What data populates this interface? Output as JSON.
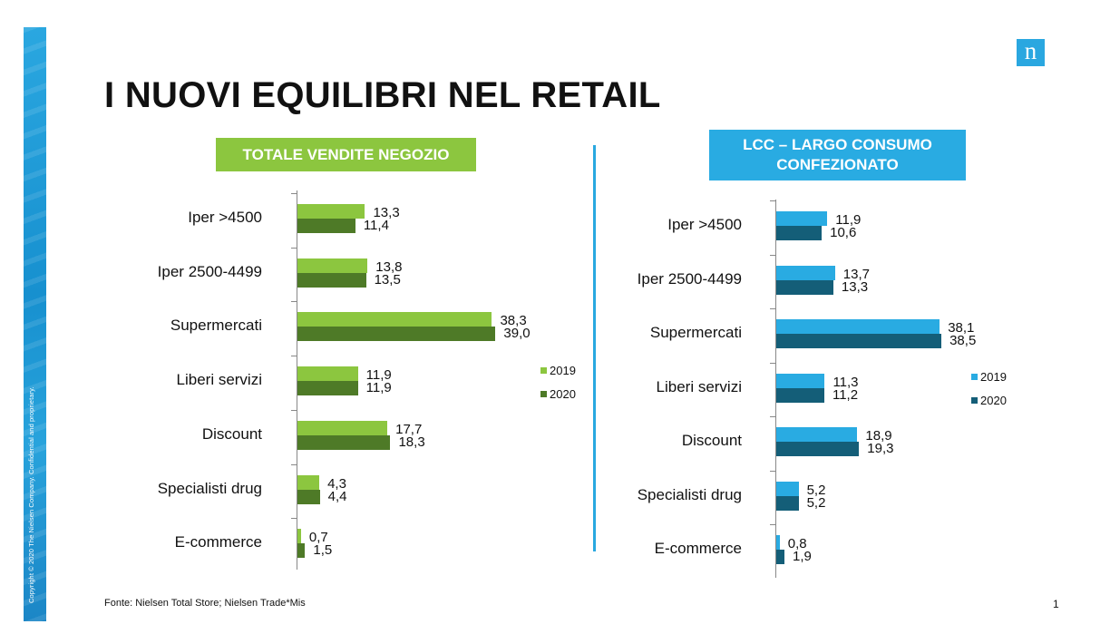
{
  "page": {
    "title": "I NUOVI EQUILIBRI NEL RETAIL",
    "logo_letter": "n",
    "copyright": "Copyright © 2020 The Nielsen Company. Confidential and proprietary.",
    "source": "Fonte: Nielsen Total Store; Nielsen Trade*Mis",
    "page_number": "1"
  },
  "colors": {
    "left_2019": "#8cc63f",
    "left_2020": "#4e7a27",
    "right_2019": "#29abe2",
    "right_2020": "#145e78",
    "accent_blue": "#29a8e0"
  },
  "chart_data": [
    {
      "type": "bar",
      "orientation": "horizontal",
      "title": "TOTALE VENDITE NEGOZIO",
      "title_lines": [
        "TOTALE VENDITE NEGOZIO"
      ],
      "categories": [
        "Iper >4500",
        "Iper 2500-4499",
        "Supermercati",
        "Liberi servizi",
        "Discount",
        "Specialisti drug",
        "E-commerce"
      ],
      "series": [
        {
          "name": "2019",
          "values": [
            13.3,
            13.8,
            38.3,
            11.9,
            17.7,
            4.3,
            0.7
          ],
          "labels": [
            "13,3",
            "13,8",
            "38,3",
            "11,9",
            "17,7",
            "4,3",
            "0,7"
          ]
        },
        {
          "name": "2020",
          "values": [
            11.4,
            13.5,
            39.0,
            11.9,
            18.3,
            4.4,
            1.5
          ],
          "labels": [
            "11,4",
            "13,5",
            "39,0",
            "11,9",
            "18,3",
            "4,4",
            "1,5"
          ]
        }
      ],
      "xlim": [
        0,
        40
      ],
      "legend": "right",
      "grid": false
    },
    {
      "type": "bar",
      "orientation": "horizontal",
      "title": "LCC – LARGO CONSUMO CONFEZIONATO",
      "title_lines": [
        "LCC – LARGO CONSUMO",
        "CONFEZIONATO"
      ],
      "categories": [
        "Iper >4500",
        "Iper 2500-4499",
        "Supermercati",
        "Liberi servizi",
        "Discount",
        "Specialisti drug",
        "E-commerce"
      ],
      "series": [
        {
          "name": "2019",
          "values": [
            11.9,
            13.7,
            38.1,
            11.3,
            18.9,
            5.2,
            0.8
          ],
          "labels": [
            "11,9",
            "13,7",
            "38,1",
            "11,3",
            "18,9",
            "5,2",
            "0,8"
          ]
        },
        {
          "name": "2020",
          "values": [
            10.6,
            13.3,
            38.5,
            11.2,
            19.3,
            5.2,
            1.9
          ],
          "labels": [
            "10,6",
            "13,3",
            "38,5",
            "11,2",
            "19,3",
            "5,2",
            "1,9"
          ]
        }
      ],
      "xlim": [
        0,
        40
      ],
      "legend": "right",
      "grid": false
    }
  ]
}
